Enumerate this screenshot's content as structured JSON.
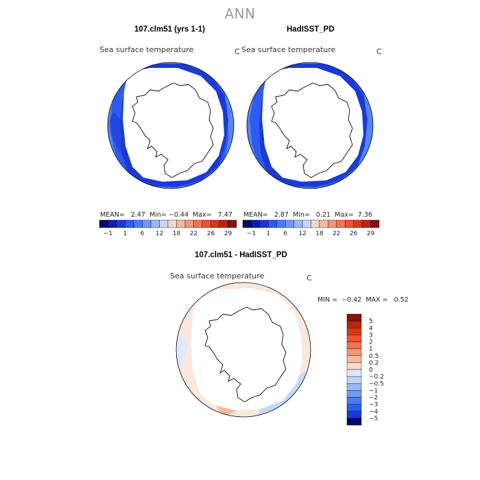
{
  "title": "ANN",
  "panels": [
    {
      "case_title": "107.clm51 (yrs 1-1)",
      "variable": "Sea surface temperature",
      "units": "C",
      "mean_label": "MEAN=",
      "mean": "2.47",
      "min_label": "Min=",
      "min": "-0.44",
      "max_label": "Max=",
      "max": "7.47"
    },
    {
      "case_title": "HadISST_PD",
      "variable": "Sea surface temperature",
      "units": "C",
      "mean_label": "MEAN=",
      "mean": "2.87",
      "min_label": "Min=",
      "min": "0.21",
      "max_label": "Max=",
      "max": "7.36"
    }
  ],
  "abs_colorbar": {
    "tick_labels": [
      "-1",
      "1",
      "6",
      "12",
      "18",
      "22",
      "26",
      "29"
    ],
    "colors": [
      "#000a6e",
      "#0a1fa6",
      "#1a3ad6",
      "#2d5cf0",
      "#4a7cf2",
      "#6f9af4",
      "#98b8f6",
      "#c6d8f8",
      "#f6d8c8",
      "#f6baa0",
      "#f49678",
      "#f27352",
      "#ec5430",
      "#d83a18",
      "#b82810",
      "#8a1208"
    ]
  },
  "diff_panel": {
    "case_title": "107.clm51 - HadISST_PD",
    "variable": "Sea surface temperature",
    "units": "C",
    "min_label": "MIN =",
    "min": "-0.42",
    "max_label": "MAX =",
    "max": "0.52"
  },
  "diff_colorbar": {
    "tick_labels": [
      "5",
      "4",
      "3",
      "2",
      "1",
      "0.5",
      "0.2",
      "0",
      "-0.2",
      "-0.5",
      "-1",
      "-2",
      "-3",
      "-4",
      "-5"
    ],
    "colors": [
      "#8a1208",
      "#b82810",
      "#d83a18",
      "#ec5430",
      "#f27352",
      "#f49678",
      "#f6baa0",
      "#f8d8c8",
      "#dde8fa",
      "#c0d4f8",
      "#98b8f6",
      "#6f9af4",
      "#4a7cf2",
      "#2d5cf0",
      "#1a3ad6",
      "#000a6e"
    ]
  },
  "map_colors": {
    "ocean_warm": "#4a7cf2",
    "ocean_mid": "#2d5cf0",
    "ocean_cold": "#1a3ad6",
    "ice_edge": "#0a1fa6",
    "diff_pos": "#f6d8c8",
    "diff_neg": "#c6d8f8",
    "land": "#ffffff",
    "coast": "#000000"
  }
}
